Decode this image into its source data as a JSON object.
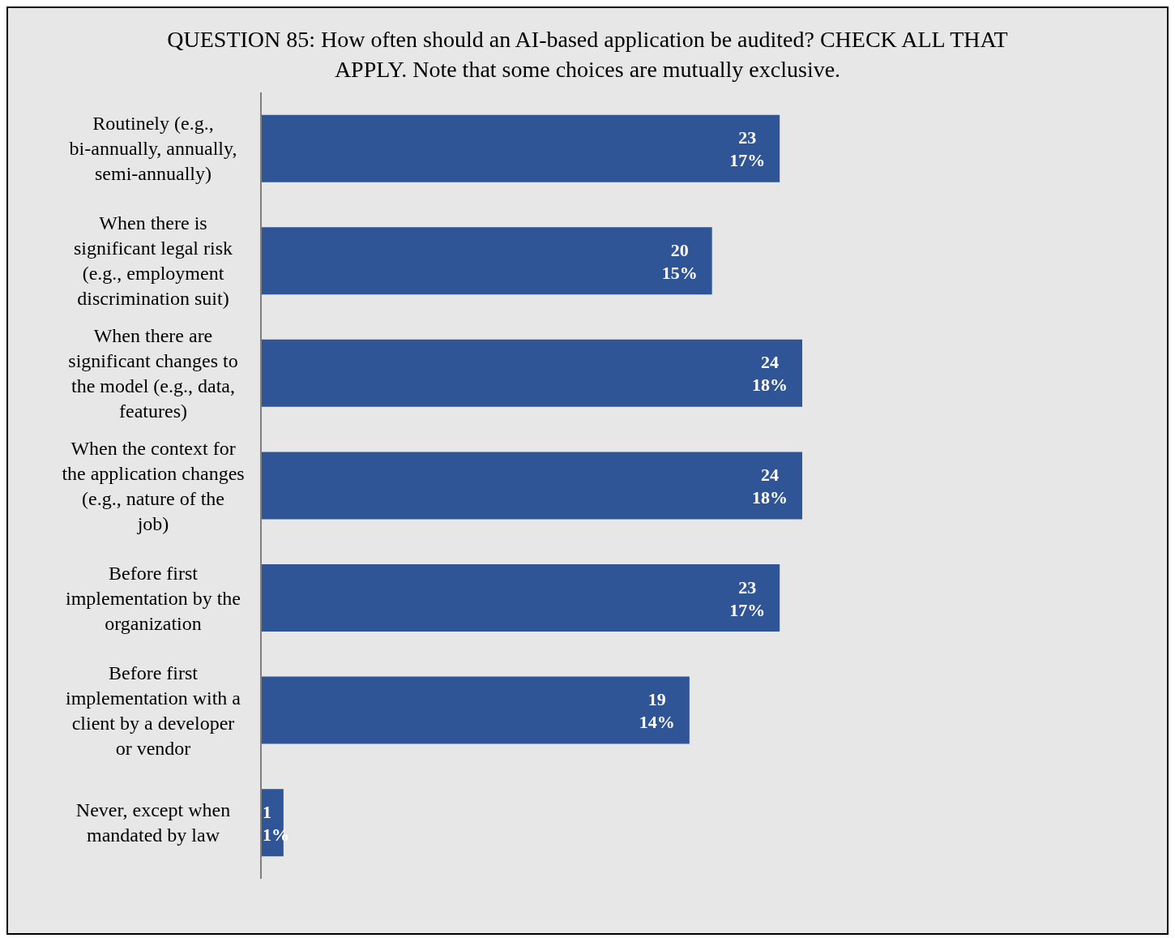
{
  "chart_data": {
    "type": "bar",
    "orientation": "horizontal",
    "title": "QUESTION 85: How often should an AI-based application be audited? CHECK ALL THAT APPLY. Note that some choices are mutually exclusive.",
    "categories": [
      "Routinely (e.g., bi-annually, annually, semi-annually)",
      "When there is significant legal risk (e.g., employment discrimination suit)",
      "When there are significant changes to the model (e.g., data, features)",
      "When the context for the application changes (e.g., nature of the job)",
      "Before first implementation by the organization",
      "Before first implementation with a client by a developer or vendor",
      "Never, except when mandated by law"
    ],
    "values": [
      23,
      20,
      24,
      24,
      23,
      19,
      1
    ],
    "value_labels": [
      "23\n17%",
      "20\n15%",
      "24\n18%",
      "24\n18%",
      "23\n17%",
      "19\n14%",
      "1\n1%"
    ],
    "color": "#2f5597"
  }
}
